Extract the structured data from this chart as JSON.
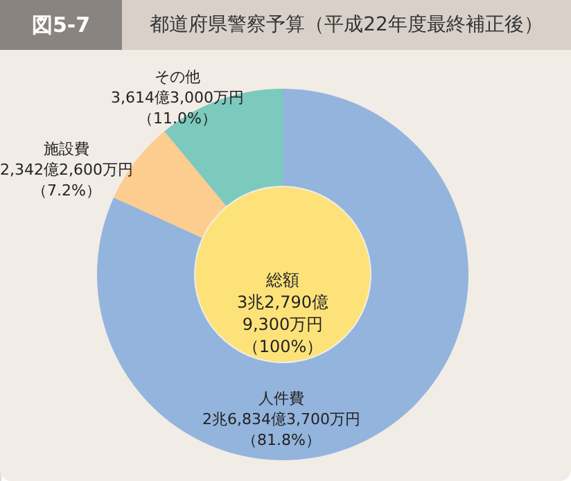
{
  "chart_data": {
    "type": "donut",
    "title": "都道府県警察予算（平成22年度最終補正後）",
    "categories": [
      "人件費",
      "施設費",
      "その他"
    ],
    "values": [
      81.8,
      7.2,
      11.0
    ],
    "colors": [
      "#93b4dc",
      "#fdcc8f",
      "#7ccabd"
    ],
    "value_labels": [
      "2兆6,834億3,700万円（81.8%）",
      "2,342億2,600万円（7.2%）",
      "3,614億3,000万円（11.0%）"
    ],
    "annotations": [
      "図5-7",
      "総額3兆2,790億9,300万円（100%）"
    ]
  }
}
